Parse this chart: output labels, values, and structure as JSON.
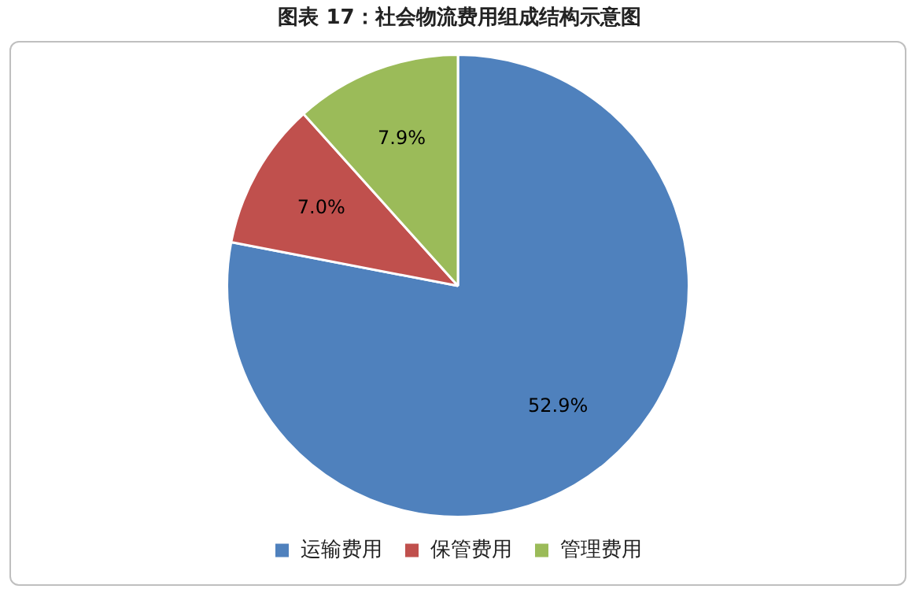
{
  "chart_data": {
    "type": "pie",
    "title": "图表 17：社会物流费用组成结构示意图",
    "categories": [
      "运输费用",
      "保管费用",
      "管理费用"
    ],
    "values": [
      52.9,
      7.0,
      7.9
    ],
    "value_labels": [
      "52.9%",
      "7.0%",
      "7.9%"
    ],
    "colors": [
      "#4f81bd",
      "#c0504d",
      "#9bbb59"
    ],
    "legend": "bottom"
  }
}
